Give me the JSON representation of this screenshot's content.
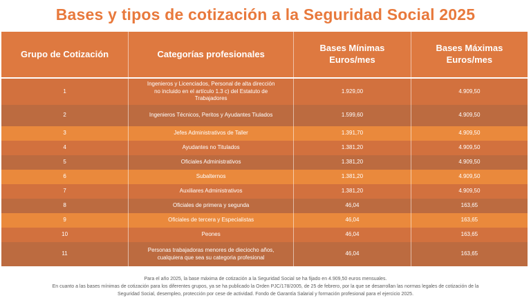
{
  "title": "Bases y tipos de cotización a la Seguridad Social 2025",
  "colors": {
    "title_orange": "#e8793c",
    "header_bg": "#de7940",
    "row_medium": "#d2713e",
    "row_dark": "#bc6b40",
    "row_bright": "#ea893c",
    "cell_text": "#ffffff",
    "footer_text": "#5b5b5b"
  },
  "table": {
    "headers": [
      "Grupo de Cotización",
      "Categorías profesionales",
      "Bases Mínimas\nEuros/mes",
      "Bases Máximas\nEuros/mes"
    ],
    "rows": [
      {
        "group": "1",
        "category": "Ingenieros y Licenciados, Personal de alta dirección no incluido en el artículo 1.3 c) del Estatuto de Trabajadores",
        "min": "1.929,00",
        "max": "4.909,50"
      },
      {
        "group": "2",
        "category": "Ingenieros Técnicos, Peritos y Ayudantes Tiulados",
        "min": "1.599,60",
        "max": "4.909,50"
      },
      {
        "group": "3",
        "category": "Jefes Administrativos de Taller",
        "min": "1.391,70",
        "max": "4.909,50"
      },
      {
        "group": "4",
        "category": "Ayudantes no Titulados",
        "min": "1.381,20",
        "max": "4.909,50"
      },
      {
        "group": "5",
        "category": "Oficiales Administrativos",
        "min": "1.381,20",
        "max": "4.909,50"
      },
      {
        "group": "6",
        "category": "Subalternos",
        "min": "1.381,20",
        "max": "4.909,50"
      },
      {
        "group": "7",
        "category": "Auxiliares Administrativos",
        "min": "1.381,20",
        "max": "4.909,50"
      },
      {
        "group": "8",
        "category": "Oficiales de primera y segunda",
        "min": "46,04",
        "max": "163,65"
      },
      {
        "group": "9",
        "category": "Oficiales de tercera y Especialistas",
        "min": "46,04",
        "max": "163,65"
      },
      {
        "group": "10",
        "category": "Peones",
        "min": "46,04",
        "max": "163,65"
      },
      {
        "group": "11",
        "category": "Personas trabajadoras menores de dieciocho años, cualquiera que sea su categoria profesional",
        "min": "46,04",
        "max": "163,65"
      }
    ]
  },
  "footer": {
    "line1": "Para el año 2025, la base máxima de cotización a la Seguridad Social se ha fijado en 4.909,50 euros mensuales.",
    "line2": "En cuanto a las bases mínimas de cotización para los diferentes grupos, ya se ha publicado la Orden PJC/178/2005, de 25 de febrero, por la que se desarrollan las normas legales de cotización de la",
    "line3": "Seguridad Social, desempleo, protección por cese de actividad. Fondo de Garantía Salarial y formación profesional para el ejercicio 2025."
  }
}
